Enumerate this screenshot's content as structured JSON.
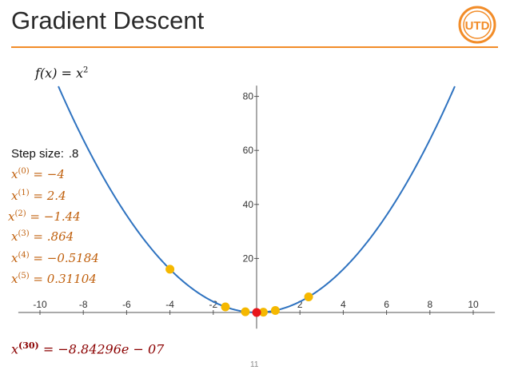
{
  "slide": {
    "title": "Gradient Descent",
    "page_number": "11",
    "logo_text": "UTD",
    "accent_color": "#f28c28"
  },
  "function_label": "f(x) = x",
  "function_exponent": "2",
  "step": {
    "label": "Step size:",
    "value": ".8"
  },
  "iterations": [
    {
      "sup": "(0)",
      "value": "= −4"
    },
    {
      "sup": "(1)",
      "value": "= 2.4"
    },
    {
      "sup": "(2)",
      "value": "= −1.44"
    },
    {
      "sup": "(3)",
      "value": "= .864"
    },
    {
      "sup": "(4)",
      "value": "= −0.5184"
    },
    {
      "sup": "(5)",
      "value": "= 0.31104"
    }
  ],
  "final": {
    "sup": "(30)",
    "value": "= −8.84296e − 07"
  },
  "chart_data": {
    "type": "line",
    "function": "x^2",
    "xlim": [
      -11,
      11
    ],
    "ylim": [
      -6,
      84
    ],
    "x_ticks": [
      -10,
      -8,
      -6,
      -4,
      -2,
      2,
      4,
      6,
      8,
      10
    ],
    "x_tick_labels": [
      "-10",
      "-8",
      "-6",
      "-4",
      "-2",
      "2",
      "4",
      "6",
      "8",
      "10"
    ],
    "y_ticks": [
      20,
      40,
      60,
      80
    ],
    "y_tick_labels": [
      "20",
      "40",
      "60",
      "80"
    ],
    "curve_color": "#2f73c0",
    "points": [
      {
        "x": -4,
        "y": 16,
        "color": "#f5b800"
      },
      {
        "x": 2.4,
        "y": 5.76,
        "color": "#f5b800"
      },
      {
        "x": -1.44,
        "y": 2.07,
        "color": "#f5b800"
      },
      {
        "x": 0.864,
        "y": 0.75,
        "color": "#f5b800"
      },
      {
        "x": -0.5184,
        "y": 0.27,
        "color": "#f5b800"
      },
      {
        "x": 0.31104,
        "y": 0.1,
        "color": "#f5b800"
      },
      {
        "x": -8.84e-07,
        "y": 0,
        "color": "#e8151b"
      }
    ]
  }
}
